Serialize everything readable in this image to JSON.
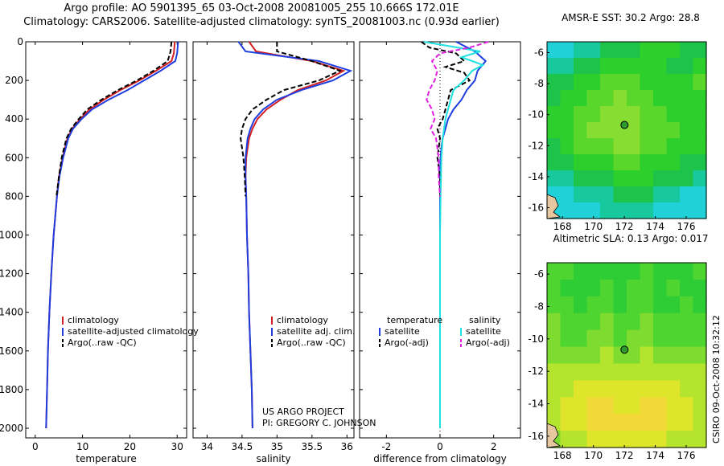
{
  "header": {
    "line1": "Argo profile: AO 5901395_65 03-Oct-2008 20081005_255 10.666S 172.01E",
    "line2": "Climatology: CARS2006. Satellite-adjusted climatology: synTS_20081003.nc (0.93d earlier)"
  },
  "side_label": "CSIRO 09-Oct-2008 10:32:12",
  "credits": {
    "line1": "US ARGO PROJECT",
    "line2": "PI: GREGORY C. JOHNSON"
  },
  "colors": {
    "climatology": "#d42020",
    "satellite": "#1f3ee0",
    "argo": "#000000",
    "sal_satellite": "#20e0e0",
    "sal_argo": "#e020e0"
  },
  "chart_data": [
    {
      "type": "line",
      "id": "temperature-profile",
      "xlabel": "temperature",
      "ylabel": "",
      "xlim": [
        -2,
        32
      ],
      "ylim": [
        2050,
        0
      ],
      "xticks": [
        0,
        10,
        20,
        30
      ],
      "yticks": [
        0,
        200,
        400,
        600,
        800,
        1000,
        1200,
        1400,
        1600,
        1800,
        2000
      ],
      "legend": [
        "climatology",
        "satellite-adjusted climatology",
        "Argo(..raw -QC)"
      ],
      "series": [
        {
          "name": "climatology",
          "color": "#d42020",
          "dash": "",
          "depth": [
            0,
            60,
            100,
            150,
            200,
            250,
            300,
            350,
            400,
            450,
            500,
            600,
            700,
            800,
            1000,
            1200,
            1400,
            1600,
            1800,
            2000
          ],
          "values": [
            29.5,
            29.3,
            28.8,
            25.5,
            22.0,
            18.0,
            14.5,
            11.5,
            9.5,
            7.8,
            6.8,
            5.8,
            5.0,
            4.6,
            3.9,
            3.4,
            3.0,
            2.7,
            2.5,
            2.3
          ]
        },
        {
          "name": "satellite-adjusted climatology",
          "color": "#1f3ee0",
          "dash": "",
          "depth": [
            0,
            60,
            100,
            150,
            200,
            250,
            300,
            350,
            400,
            450,
            500,
            600,
            700,
            800,
            1000,
            1200,
            1400,
            1600,
            1800,
            2000
          ],
          "values": [
            30.2,
            30.0,
            29.6,
            26.5,
            23.0,
            19.5,
            15.5,
            12.0,
            9.8,
            8.0,
            7.0,
            5.9,
            5.1,
            4.6,
            3.9,
            3.4,
            3.0,
            2.7,
            2.5,
            2.3
          ]
        },
        {
          "name": "Argo(..raw -QC)",
          "color": "#000000",
          "dash": "6,3",
          "depth": [
            0,
            50,
            100,
            150,
            200,
            250,
            300,
            350,
            400,
            450,
            500,
            600,
            700,
            800
          ],
          "values": [
            28.8,
            28.6,
            28.0,
            25.0,
            21.5,
            17.5,
            14.0,
            11.0,
            9.2,
            7.6,
            6.6,
            5.6,
            5.0,
            4.5
          ]
        }
      ]
    },
    {
      "type": "line",
      "id": "salinity-profile",
      "xlabel": "salinity",
      "ylabel": "",
      "xlim": [
        33.8,
        36.1
      ],
      "ylim": [
        2050,
        0
      ],
      "xticks": [
        34,
        34.5,
        35,
        35.5,
        36
      ],
      "legend": [
        "climatology",
        "satellite adj. clim.",
        "Argo(..raw -QC)"
      ],
      "series": [
        {
          "name": "climatology",
          "color": "#d42020",
          "dash": "",
          "depth": [
            0,
            50,
            100,
            150,
            200,
            250,
            300,
            350,
            400,
            450,
            500,
            600,
            700,
            800,
            1000,
            1200,
            1400,
            1600,
            1800,
            2000
          ],
          "values": [
            34.6,
            34.7,
            35.5,
            35.95,
            35.7,
            35.3,
            35.05,
            34.85,
            34.72,
            34.65,
            34.6,
            34.56,
            34.55,
            34.56,
            34.57,
            34.59,
            34.6,
            34.62,
            34.64,
            34.65
          ]
        },
        {
          "name": "satellite adj. clim.",
          "color": "#1f3ee0",
          "dash": "",
          "depth": [
            0,
            50,
            100,
            150,
            200,
            250,
            300,
            350,
            400,
            450,
            500,
            600,
            700,
            800,
            1000,
            1200,
            1400,
            1600,
            1800,
            2000
          ],
          "values": [
            34.45,
            34.55,
            35.6,
            36.05,
            35.8,
            35.35,
            35.0,
            34.8,
            34.68,
            34.62,
            34.58,
            34.55,
            34.55,
            34.56,
            34.57,
            34.59,
            34.6,
            34.62,
            34.64,
            34.65
          ]
        },
        {
          "name": "Argo(..raw -QC)",
          "color": "#000000",
          "dash": "6,3",
          "depth": [
            0,
            50,
            100,
            150,
            200,
            250,
            300,
            350,
            400,
            450,
            500,
            550,
            600,
            700,
            800
          ],
          "values": [
            35.0,
            35.0,
            35.5,
            35.9,
            35.6,
            35.1,
            34.85,
            34.65,
            34.55,
            34.5,
            34.48,
            34.5,
            34.52,
            34.54,
            34.55
          ]
        }
      ]
    },
    {
      "type": "line",
      "id": "difference-profile",
      "xlabel": "difference from climatology",
      "ylabel": "",
      "xlim": [
        -3,
        3
      ],
      "ylim": [
        2050,
        0
      ],
      "xticks": [
        -2,
        0,
        2
      ],
      "legend_headers": [
        "temperature",
        "salinity"
      ],
      "legend": [
        "satellite",
        "Argo(-adj)",
        "satellite",
        "Argo(-adj)"
      ],
      "series": [
        {
          "name": "temperature satellite",
          "color": "#1f3ee0",
          "dash": "",
          "depth": [
            0,
            50,
            100,
            150,
            200,
            250,
            300,
            350,
            400,
            450,
            500,
            550,
            600,
            700,
            800,
            1000,
            1200,
            1400,
            1600,
            1800,
            2000
          ],
          "values": [
            0.6,
            1.3,
            1.7,
            1.4,
            1.3,
            1.0,
            0.8,
            0.5,
            0.3,
            0.2,
            0.1,
            0.05,
            0.02,
            0.0,
            0.0,
            0.0,
            0.0,
            0.0,
            0.0,
            0.0,
            0.0
          ]
        },
        {
          "name": "temperature Argo(-adj)",
          "color": "#000000",
          "dash": "6,3",
          "depth": [
            0,
            30,
            60,
            100,
            130,
            160,
            200,
            250,
            300,
            350,
            400,
            450,
            500,
            600,
            700,
            800
          ],
          "values": [
            -0.7,
            -0.4,
            0.6,
            0.9,
            0.2,
            0.9,
            1.1,
            0.4,
            0.3,
            0.2,
            0.1,
            -0.1,
            0.0,
            -0.1,
            0.0,
            0.0
          ]
        },
        {
          "name": "salinity satellite",
          "color": "#20e0e0",
          "dash": "",
          "depth": [
            0,
            50,
            80,
            100,
            120,
            150,
            200,
            250,
            300,
            400,
            500,
            600,
            800,
            1000,
            1200,
            1400,
            1600,
            1800,
            2000
          ],
          "values": [
            -0.6,
            1.5,
            0.8,
            1.2,
            1.6,
            1.2,
            0.9,
            0.5,
            0.4,
            0.2,
            0.1,
            0.05,
            0.02,
            0.0,
            0.0,
            0.0,
            0.0,
            0.0,
            0.0
          ]
        },
        {
          "name": "salinity Argo(-adj)",
          "color": "#e020e0",
          "dash": "6,3",
          "depth": [
            0,
            30,
            60,
            100,
            150,
            200,
            250,
            300,
            350,
            400,
            450,
            500,
            550,
            600,
            700,
            800
          ],
          "values": [
            1.8,
            1.1,
            0.0,
            -0.3,
            -0.1,
            -0.2,
            -0.4,
            -0.5,
            -0.3,
            -0.2,
            -0.35,
            -0.15,
            -0.1,
            -0.05,
            -0.05,
            0.0
          ]
        }
      ]
    },
    {
      "type": "heatmap",
      "id": "sst-map",
      "title": "AMSR-E SST: 30.2 Argo: 28.8",
      "xlim": [
        167,
        177.3
      ],
      "ylim": [
        -16.7,
        -5.3
      ],
      "xticks": [
        168,
        170,
        172,
        174,
        176
      ],
      "yticks": [
        -6,
        -8,
        -10,
        -12,
        -14,
        -16
      ],
      "point": [
        172.01,
        -10.666
      ],
      "palette": [
        "#20d2d8",
        "#17c99c",
        "#1ec34a",
        "#2ccf2c",
        "#5bd62a",
        "#88dd33"
      ]
    },
    {
      "type": "heatmap",
      "id": "sla-map",
      "title": "Altimetric SLA: 0.13 Argo: 0.017",
      "xlim": [
        167,
        177.3
      ],
      "ylim": [
        -16.7,
        -5.3
      ],
      "xticks": [
        168,
        170,
        172,
        174,
        176
      ],
      "yticks": [
        -6,
        -8,
        -10,
        -12,
        -14,
        -16
      ],
      "point": [
        172.01,
        -10.666
      ],
      "palette": [
        "#2ecc35",
        "#4fd530",
        "#7edc30",
        "#b4e42e",
        "#dee52a",
        "#f3d83a"
      ]
    }
  ]
}
